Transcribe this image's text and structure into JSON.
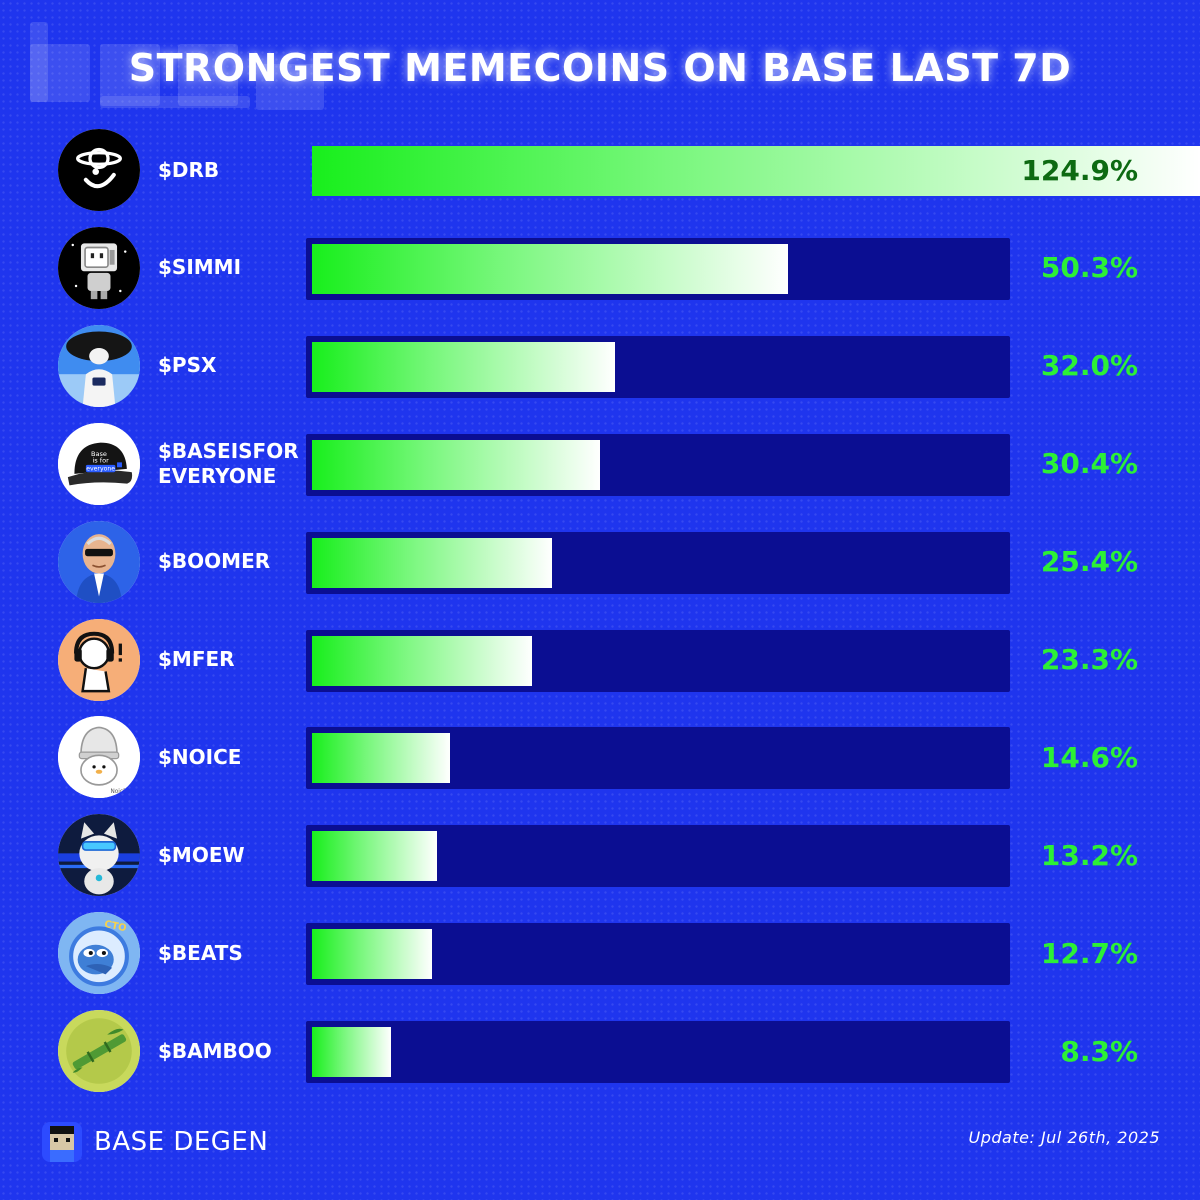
{
  "title": "STRONGEST MEMECOINS ON BASE LAST 7D",
  "colors": {
    "background": "#1f35ee",
    "track": "#0b0e92",
    "bar_start": "#18ef1c",
    "bar_end": "#ffffff",
    "value_text": "#2cf036"
  },
  "chart_data": {
    "type": "bar",
    "orientation": "horizontal",
    "title": "STRONGEST MEMECOINS ON BASE LAST 7D",
    "categories": [
      "$DRB",
      "$SIMMI",
      "$PSX",
      "$BASEISFOR EVERYONE",
      "$BOOMER",
      "$MFER",
      "$NOICE",
      "$MOEW",
      "$BEATS",
      "$BAMBOO"
    ],
    "values": [
      124.9,
      50.3,
      32.0,
      30.4,
      25.4,
      23.3,
      14.6,
      13.2,
      12.7,
      8.3
    ],
    "labels": [
      "124.9%",
      "50.3%",
      "32.0%",
      "30.4%",
      "25.4%",
      "23.3%",
      "14.6%",
      "13.2%",
      "12.7%",
      "8.3%"
    ],
    "unit": "%",
    "grid": false,
    "legend": "none"
  },
  "coins": [
    {
      "name_lines": [
        "$DRB"
      ],
      "avatar_icon": "drb-smiley-icon"
    },
    {
      "name_lines": [
        "$SIMMI"
      ],
      "avatar_icon": "simmi-robot-icon"
    },
    {
      "name_lines": [
        "$PSX"
      ],
      "avatar_icon": "psx-character-icon"
    },
    {
      "name_lines": [
        "$BASEISFOR",
        "EVERYONE"
      ],
      "avatar_icon": "base-cap-icon",
      "cap_text_1": "Base",
      "cap_text_2": "is for",
      "cap_text_3": "everyone"
    },
    {
      "name_lines": [
        "$BOOMER"
      ],
      "avatar_icon": "boomer-face-icon"
    },
    {
      "name_lines": [
        "$MFER"
      ],
      "avatar_icon": "mfer-headphones-icon"
    },
    {
      "name_lines": [
        "$NOICE"
      ],
      "avatar_icon": "noice-penguin-icon",
      "sig_text": "NoicE"
    },
    {
      "name_lines": [
        "$MOEW"
      ],
      "avatar_icon": "moew-cat-icon"
    },
    {
      "name_lines": [
        "$BEATS"
      ],
      "avatar_icon": "beats-frog-icon",
      "badge_text": "CTO"
    },
    {
      "name_lines": [
        "$BAMBOO"
      ],
      "avatar_icon": "bamboo-icon"
    }
  ],
  "footer": {
    "brand": "BASE DEGEN",
    "logo_icon": "pixel-avatar-icon",
    "update": "Update: Jul 26th, 2025"
  }
}
